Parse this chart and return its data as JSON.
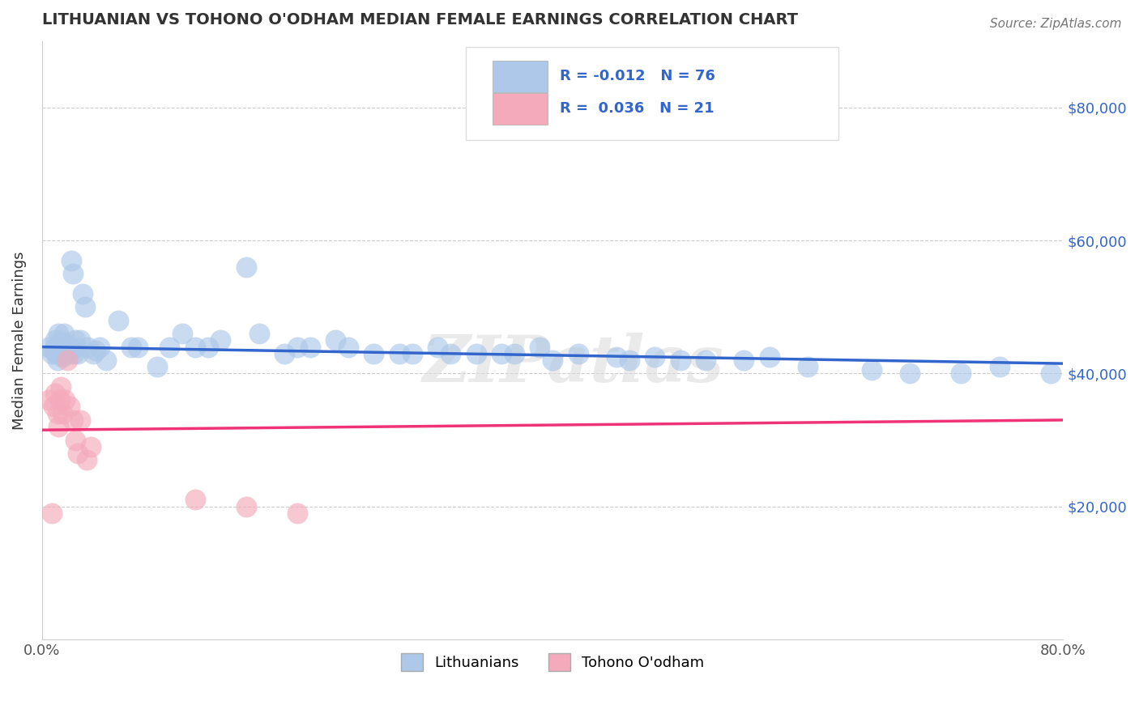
{
  "title": "LITHUANIAN VS TOHONO O'ODHAM MEDIAN FEMALE EARNINGS CORRELATION CHART",
  "source": "Source: ZipAtlas.com",
  "ylabel": "Median Female Earnings",
  "xlim": [
    0.0,
    0.8
  ],
  "ylim": [
    0,
    90000
  ],
  "blue_color": "#adc8e8",
  "pink_color": "#f4aabb",
  "blue_line_color": "#3366cc",
  "pink_line_color": "#ee3377",
  "blue_scatter_x": [
    0.005,
    0.008,
    0.009,
    0.01,
    0.01,
    0.011,
    0.012,
    0.013,
    0.013,
    0.014,
    0.015,
    0.015,
    0.016,
    0.016,
    0.017,
    0.018,
    0.018,
    0.019,
    0.02,
    0.021,
    0.022,
    0.023,
    0.024,
    0.025,
    0.026,
    0.027,
    0.028,
    0.03,
    0.032,
    0.034,
    0.036,
    0.04,
    0.042,
    0.045,
    0.05,
    0.06,
    0.07,
    0.075,
    0.09,
    0.1,
    0.11,
    0.13,
    0.16,
    0.2,
    0.24,
    0.28,
    0.32,
    0.36,
    0.4,
    0.45,
    0.5,
    0.6,
    0.65,
    0.68,
    0.72,
    0.75,
    0.79,
    0.12,
    0.14,
    0.17,
    0.19,
    0.21,
    0.23,
    0.26,
    0.29,
    0.31,
    0.34,
    0.37,
    0.39,
    0.42,
    0.46,
    0.48,
    0.52,
    0.55,
    0.57
  ],
  "blue_scatter_y": [
    44000,
    43000,
    43500,
    44000,
    45000,
    43000,
    42000,
    44000,
    46000,
    43500,
    44000,
    45000,
    42500,
    44000,
    46000,
    43000,
    44500,
    43000,
    44000,
    43000,
    44000,
    57000,
    55000,
    43000,
    45000,
    44000,
    43000,
    45000,
    52000,
    50000,
    44000,
    43000,
    43500,
    44000,
    42000,
    48000,
    44000,
    44000,
    41000,
    44000,
    46000,
    44000,
    56000,
    44000,
    44000,
    43000,
    43000,
    43000,
    42000,
    42500,
    42000,
    41000,
    40500,
    40000,
    40000,
    41000,
    40000,
    44000,
    45000,
    46000,
    43000,
    44000,
    45000,
    43000,
    43000,
    44000,
    43000,
    43000,
    44000,
    43000,
    42000,
    42500,
    42000,
    42000,
    42500
  ],
  "pink_scatter_x": [
    0.005,
    0.008,
    0.009,
    0.01,
    0.012,
    0.013,
    0.014,
    0.015,
    0.016,
    0.018,
    0.02,
    0.022,
    0.024,
    0.026,
    0.028,
    0.03,
    0.035,
    0.038,
    0.12,
    0.16,
    0.2
  ],
  "pink_scatter_y": [
    36000,
    19000,
    35000,
    37000,
    34000,
    32000,
    36000,
    38000,
    34000,
    36000,
    42000,
    35000,
    33000,
    30000,
    28000,
    33000,
    27000,
    29000,
    21000,
    20000,
    19000
  ],
  "blue_trend_x": [
    0.0,
    0.8
  ],
  "blue_trend_y": [
    44000,
    41500
  ],
  "pink_trend_x": [
    0.0,
    0.8
  ],
  "pink_trend_y": [
    31500,
    33000
  ],
  "watermark": "ZIPatlas",
  "background_color": "#ffffff",
  "grid_color": "#cccccc"
}
